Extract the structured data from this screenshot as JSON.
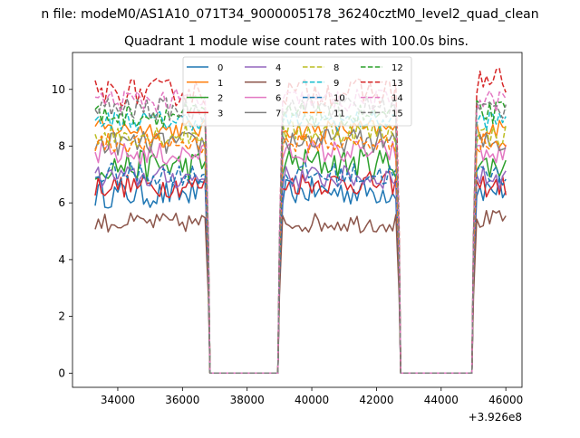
{
  "chart_data": {
    "type": "line",
    "suptitle": "n file: modeM0/AS1A10_071T34_9000005178_36240cztM0_level2_quad_clean",
    "title": "Quadrant 1 module wise count rates with 100.0s bins.",
    "xlabel": "",
    "ylabel": "",
    "x_offset_label": "+3.926e8",
    "xlim": [
      32600,
      46500
    ],
    "ylim": [
      -0.5,
      11.3
    ],
    "xticks": [
      34000,
      36000,
      38000,
      40000,
      42000,
      44000,
      46000
    ],
    "yticks": [
      0,
      2,
      4,
      6,
      8,
      10
    ],
    "legend_position": "top-center",
    "segments": [
      {
        "x_start": 33300,
        "x_end": 36700,
        "step": 100
      },
      {
        "x_start": 39100,
        "x_end": 42600,
        "step": 100
      },
      {
        "x_start": 45100,
        "x_end": 46000,
        "step": 100
      }
    ],
    "gap_points": [
      {
        "x": 36800,
        "y_source": "half"
      },
      {
        "x": 36850,
        "y": 0
      },
      {
        "x": 38950,
        "y": 0
      },
      {
        "x": 39000,
        "y_source": "half_next"
      },
      {
        "x": 42700,
        "y_source": "half"
      },
      {
        "x": 42750,
        "y": 0
      },
      {
        "x": 44950,
        "y": 0
      },
      {
        "x": 45000,
        "y_source": "half_next"
      }
    ],
    "series": [
      {
        "name": "0",
        "color": "#1f77b4",
        "style": "solid",
        "levels": [
          6.3,
          6.4,
          6.5
        ],
        "noise": 0.35
      },
      {
        "name": "1",
        "color": "#ff7f0e",
        "style": "solid",
        "levels": [
          8.6,
          8.6,
          8.6
        ],
        "noise": 0.25
      },
      {
        "name": "2",
        "color": "#2ca02c",
        "style": "solid",
        "levels": [
          7.3,
          7.4,
          7.3
        ],
        "noise": 0.4
      },
      {
        "name": "3",
        "color": "#d62728",
        "style": "solid",
        "levels": [
          6.6,
          6.7,
          6.6
        ],
        "noise": 0.3
      },
      {
        "name": "4",
        "color": "#9467bd",
        "style": "solid",
        "levels": [
          6.9,
          6.9,
          6.9
        ],
        "noise": 0.3
      },
      {
        "name": "5",
        "color": "#8c564b",
        "style": "solid",
        "levels": [
          5.3,
          5.3,
          5.4
        ],
        "noise": 0.25
      },
      {
        "name": "6",
        "color": "#e377c2",
        "style": "solid",
        "levels": [
          7.7,
          7.8,
          7.7
        ],
        "noise": 0.3
      },
      {
        "name": "7",
        "color": "#7f7f7f",
        "style": "solid",
        "levels": [
          8.1,
          8.2,
          8.1
        ],
        "noise": 0.3
      },
      {
        "name": "8",
        "color": "#bcbd22",
        "style": "dashed",
        "levels": [
          8.4,
          8.5,
          8.4
        ],
        "noise": 0.3
      },
      {
        "name": "9",
        "color": "#17becf",
        "style": "dashed",
        "levels": [
          8.9,
          8.9,
          8.9
        ],
        "noise": 0.25
      },
      {
        "name": "10",
        "color": "#1f77b4",
        "style": "dashed",
        "levels": [
          7.0,
          7.0,
          7.0
        ],
        "noise": 0.3
      },
      {
        "name": "11",
        "color": "#ff7f0e",
        "style": "dashed",
        "levels": [
          8.1,
          8.1,
          8.1
        ],
        "noise": 0.25
      },
      {
        "name": "12",
        "color": "#2ca02c",
        "style": "dashed",
        "levels": [
          9.1,
          9.1,
          9.2
        ],
        "noise": 0.3
      },
      {
        "name": "13",
        "color": "#d62728",
        "style": "dashed",
        "levels": [
          9.9,
          9.9,
          10.3
        ],
        "noise": 0.35
      },
      {
        "name": "14",
        "color": "#e377c2",
        "style": "dashed",
        "levels": [
          9.6,
          9.6,
          9.6
        ],
        "noise": 0.3
      },
      {
        "name": "15",
        "color": "#7f7f7f",
        "style": "dashed",
        "levels": [
          9.3,
          9.4,
          9.3
        ],
        "noise": 0.3
      }
    ]
  }
}
